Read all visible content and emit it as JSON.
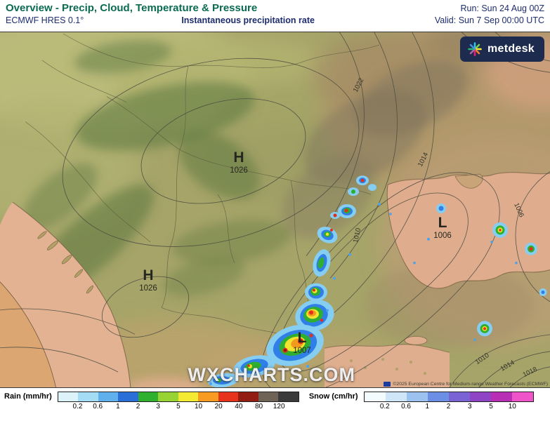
{
  "header": {
    "title": "Overview - Precip, Cloud, Temperature & Pressure",
    "model": "ECMWF HRES 0.1°",
    "subtitle": "Instantaneous precipitation rate",
    "run_label": "Run: Sun 24 Aug 00Z",
    "valid_label": "Valid: Sun 7 Sep 00:00 UTC"
  },
  "logo": {
    "text": "metdesk"
  },
  "map": {
    "watermark": "WXCHARTS.COM",
    "copyright": "©2025 European Centre for Medium-range Weather Forecasts (ECMWF)",
    "pressure_centers": [
      {
        "type": "high",
        "letter": "H",
        "value": "1026"
      },
      {
        "type": "high",
        "letter": "H",
        "value": "1026"
      },
      {
        "type": "low",
        "letter": "L",
        "value": "1006"
      },
      {
        "type": "low",
        "letter": "L",
        "value": "1007"
      }
    ],
    "isobar_labels": [
      "1022",
      "1014",
      "1010",
      "1006",
      "1010",
      "1014",
      "1018"
    ]
  },
  "legend": {
    "rain": {
      "label": "Rain (mm/hr)",
      "ticks": [
        "0.2",
        "0.6",
        "1",
        "2",
        "3",
        "5",
        "10",
        "20",
        "40",
        "80",
        "120"
      ],
      "colors": [
        "#dcf3fa",
        "#a5dcf5",
        "#5fb0ec",
        "#2a6fd8",
        "#2fb02f",
        "#97d332",
        "#f4ea33",
        "#f79b22",
        "#e8331c",
        "#911d13",
        "#6e6356",
        "#3a3a3a"
      ]
    },
    "snow": {
      "label": "Snow (cm/hr)",
      "ticks": [
        "0.2",
        "0.6",
        "1",
        "2",
        "3",
        "5",
        "10"
      ],
      "colors": [
        "#f4fbff",
        "#cfe6f8",
        "#9cc3f0",
        "#6b8fe4",
        "#7a63d4",
        "#8e44c4",
        "#b82eb4",
        "#ef55c8"
      ]
    }
  }
}
